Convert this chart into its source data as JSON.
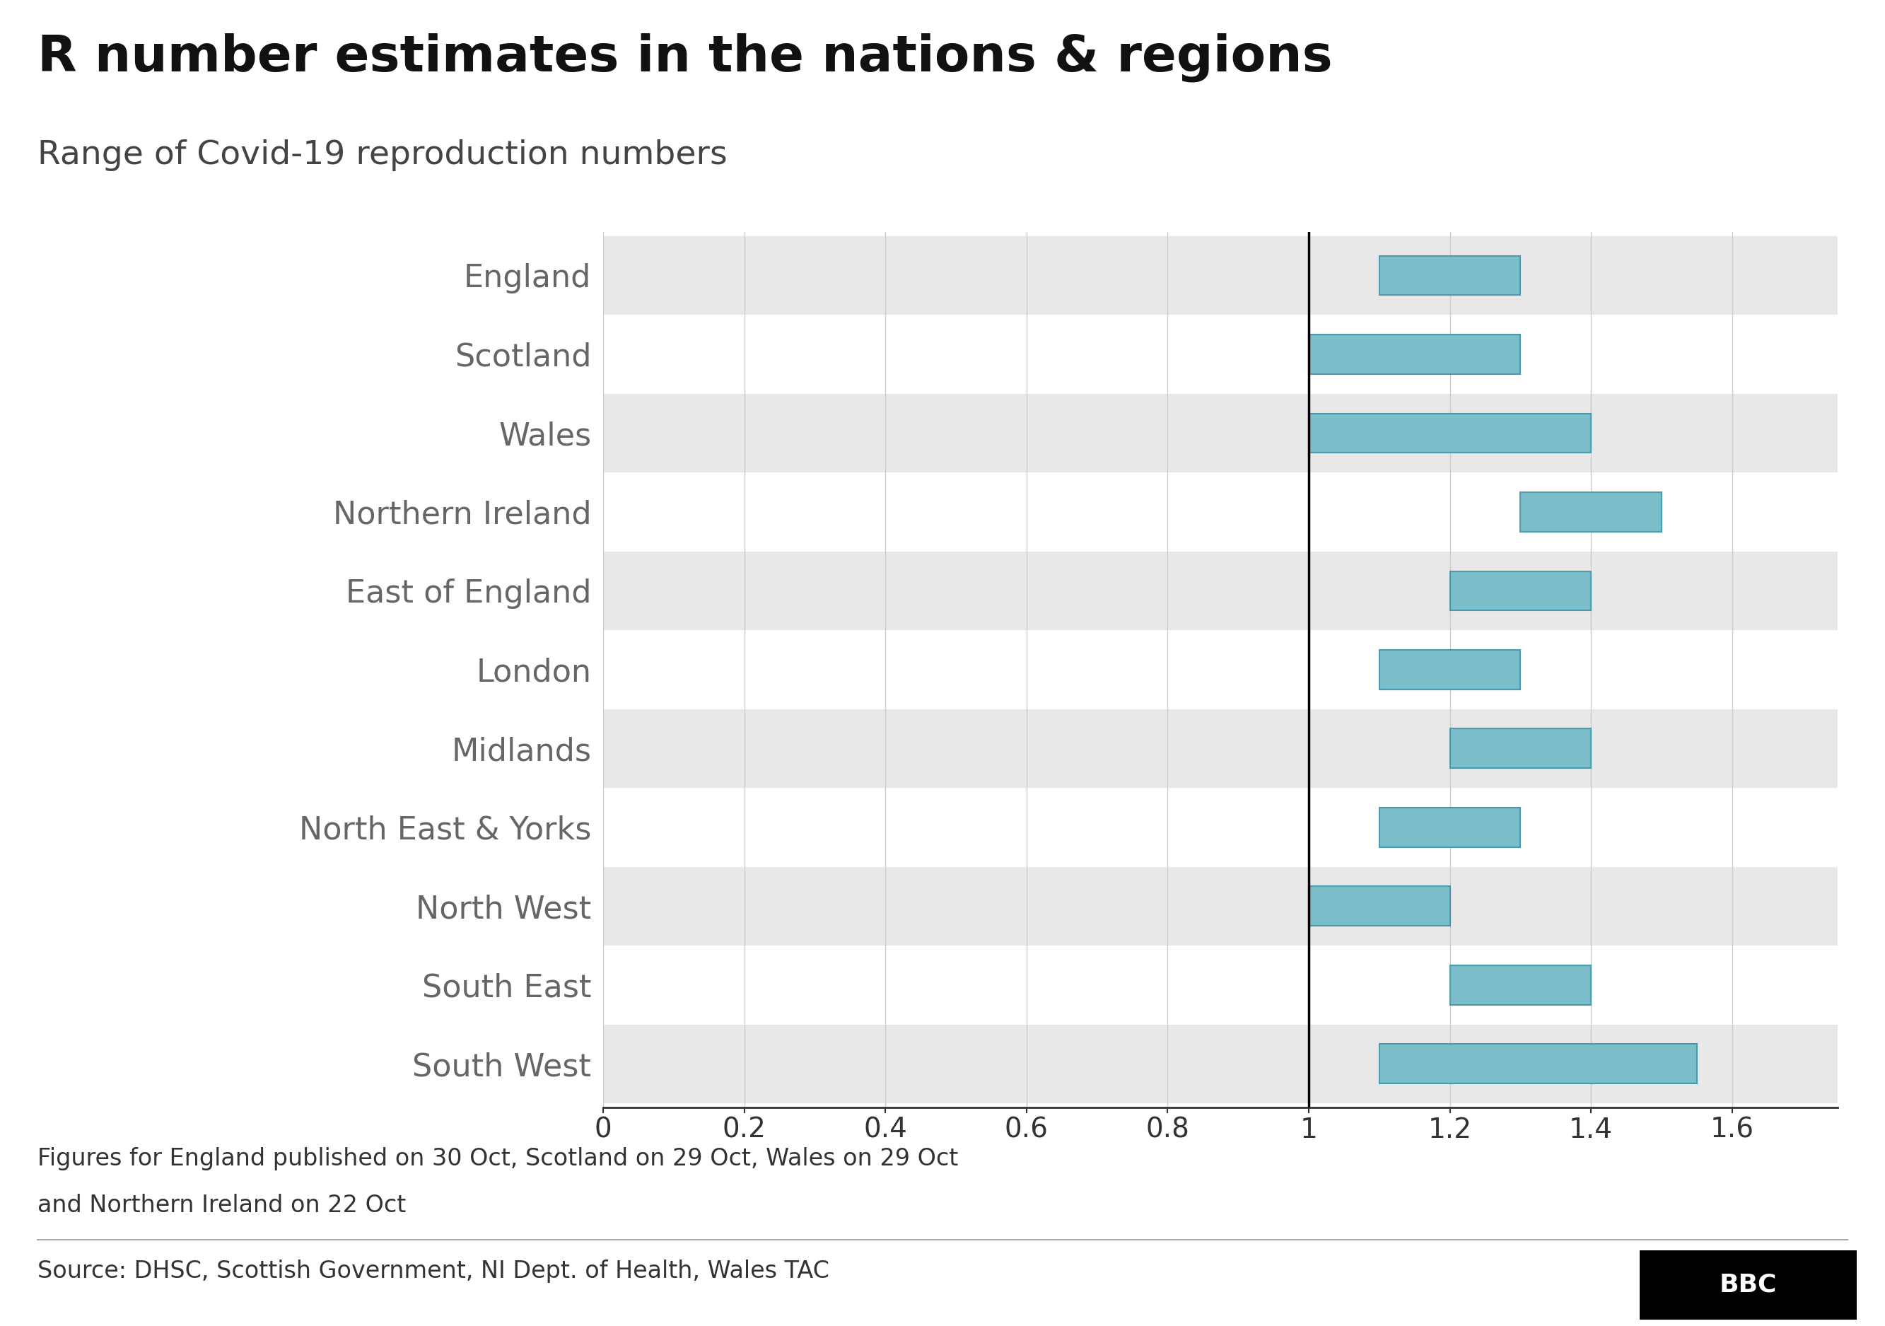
{
  "title": "R number estimates in the nations & regions",
  "subtitle": "Range of Covid-19 reproduction numbers",
  "regions": [
    "England",
    "Scotland",
    "Wales",
    "Northern Ireland",
    "East of England",
    "London",
    "Midlands",
    "North East & Yorks",
    "North West",
    "South East",
    "South West"
  ],
  "bar_low": [
    1.1,
    1.0,
    1.0,
    1.3,
    1.2,
    1.1,
    1.2,
    1.1,
    1.0,
    1.2,
    1.1
  ],
  "bar_high": [
    1.3,
    1.3,
    1.4,
    1.5,
    1.4,
    1.3,
    1.4,
    1.3,
    1.2,
    1.4,
    1.55
  ],
  "bar_color": "#7bbdc8",
  "bar_edge_color": "#4a9ab0",
  "vline_x": 1.0,
  "xlim": [
    0.0,
    1.75
  ],
  "xticks": [
    0,
    0.2,
    0.4,
    0.6,
    0.8,
    1.0,
    1.2,
    1.4,
    1.6
  ],
  "xtick_labels": [
    "0",
    "0.2",
    "0.4",
    "0.6",
    "0.8",
    "1",
    "1.2",
    "1.4",
    "1.6"
  ],
  "background_color": "#ffffff",
  "grid_color": "#cccccc",
  "row_odd_color": "#e8e8e8",
  "row_even_color": "#ffffff",
  "footnote_line1": "Figures for England published on 30 Oct, Scotland on 29 Oct, Wales on 29 Oct",
  "footnote_line2": "and Northern Ireland on 22 Oct",
  "source_text": "Source: DHSC, Scottish Government, NI Dept. of Health, Wales TAC",
  "title_fontsize": 52,
  "subtitle_fontsize": 34,
  "tick_fontsize": 28,
  "label_fontsize": 32,
  "footnote_fontsize": 24,
  "source_fontsize": 24,
  "bar_height": 0.5
}
